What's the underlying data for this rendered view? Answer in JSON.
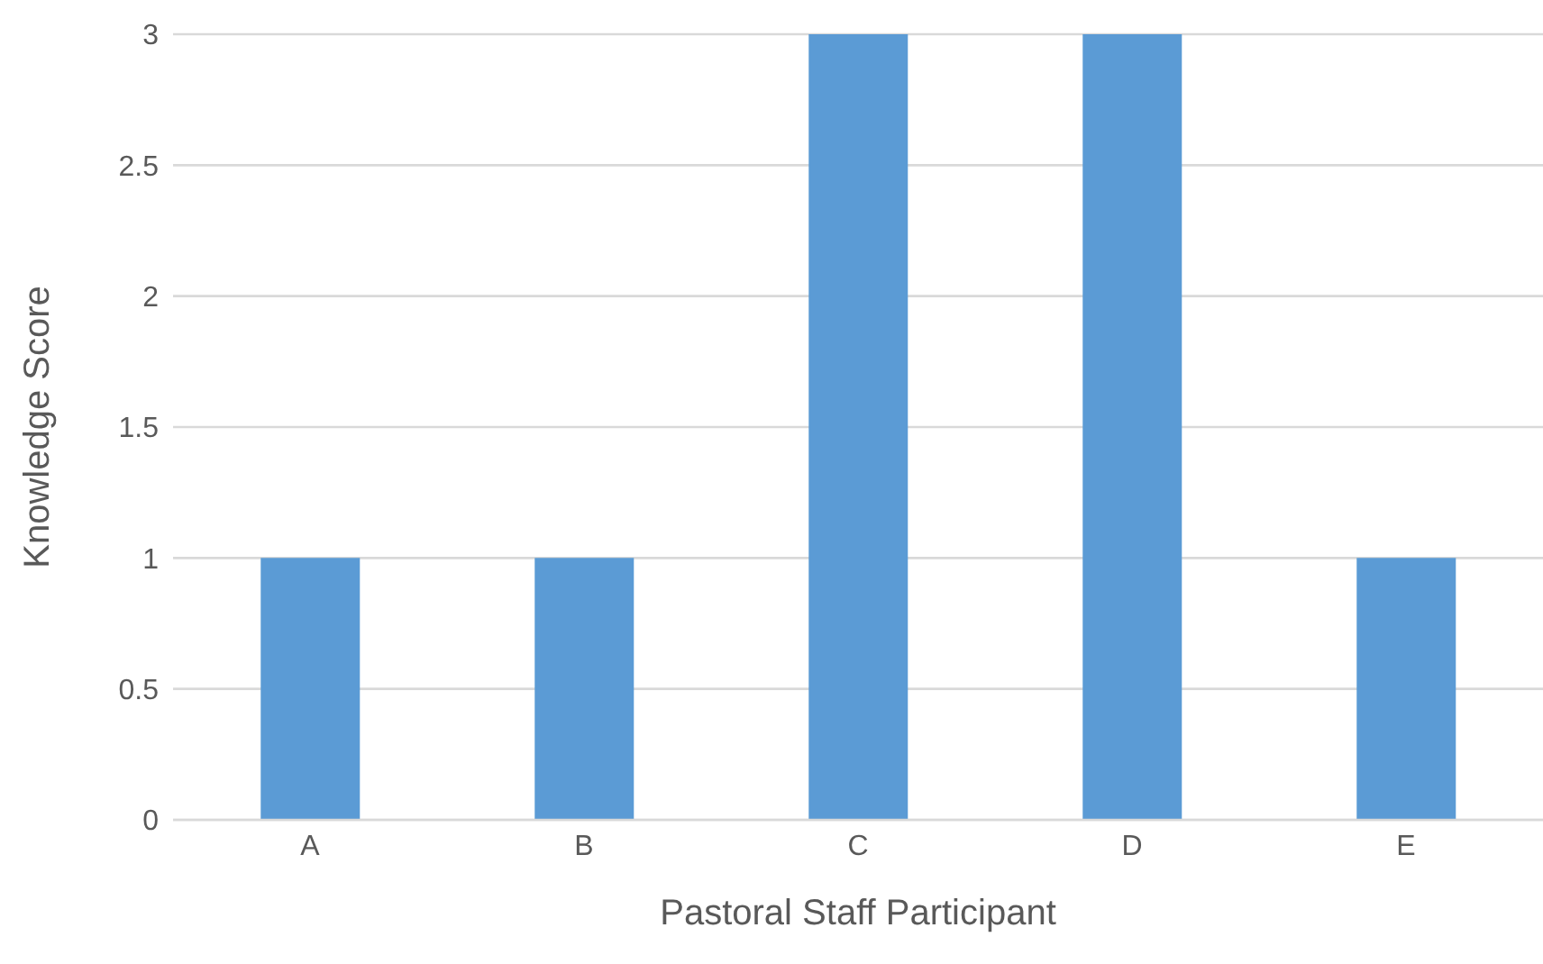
{
  "chart_data": {
    "type": "bar",
    "xlabel": "Pastoral Staff Participant",
    "ylabel": "Knowledge Score",
    "categories": [
      "A",
      "B",
      "C",
      "D",
      "E"
    ],
    "values": [
      1,
      1,
      3,
      3,
      1
    ],
    "color": "#5b9bd5",
    "ylim": [
      0,
      3
    ],
    "yticks": [
      0,
      0.5,
      1,
      1.5,
      2,
      2.5,
      3
    ],
    "grid": "y"
  }
}
